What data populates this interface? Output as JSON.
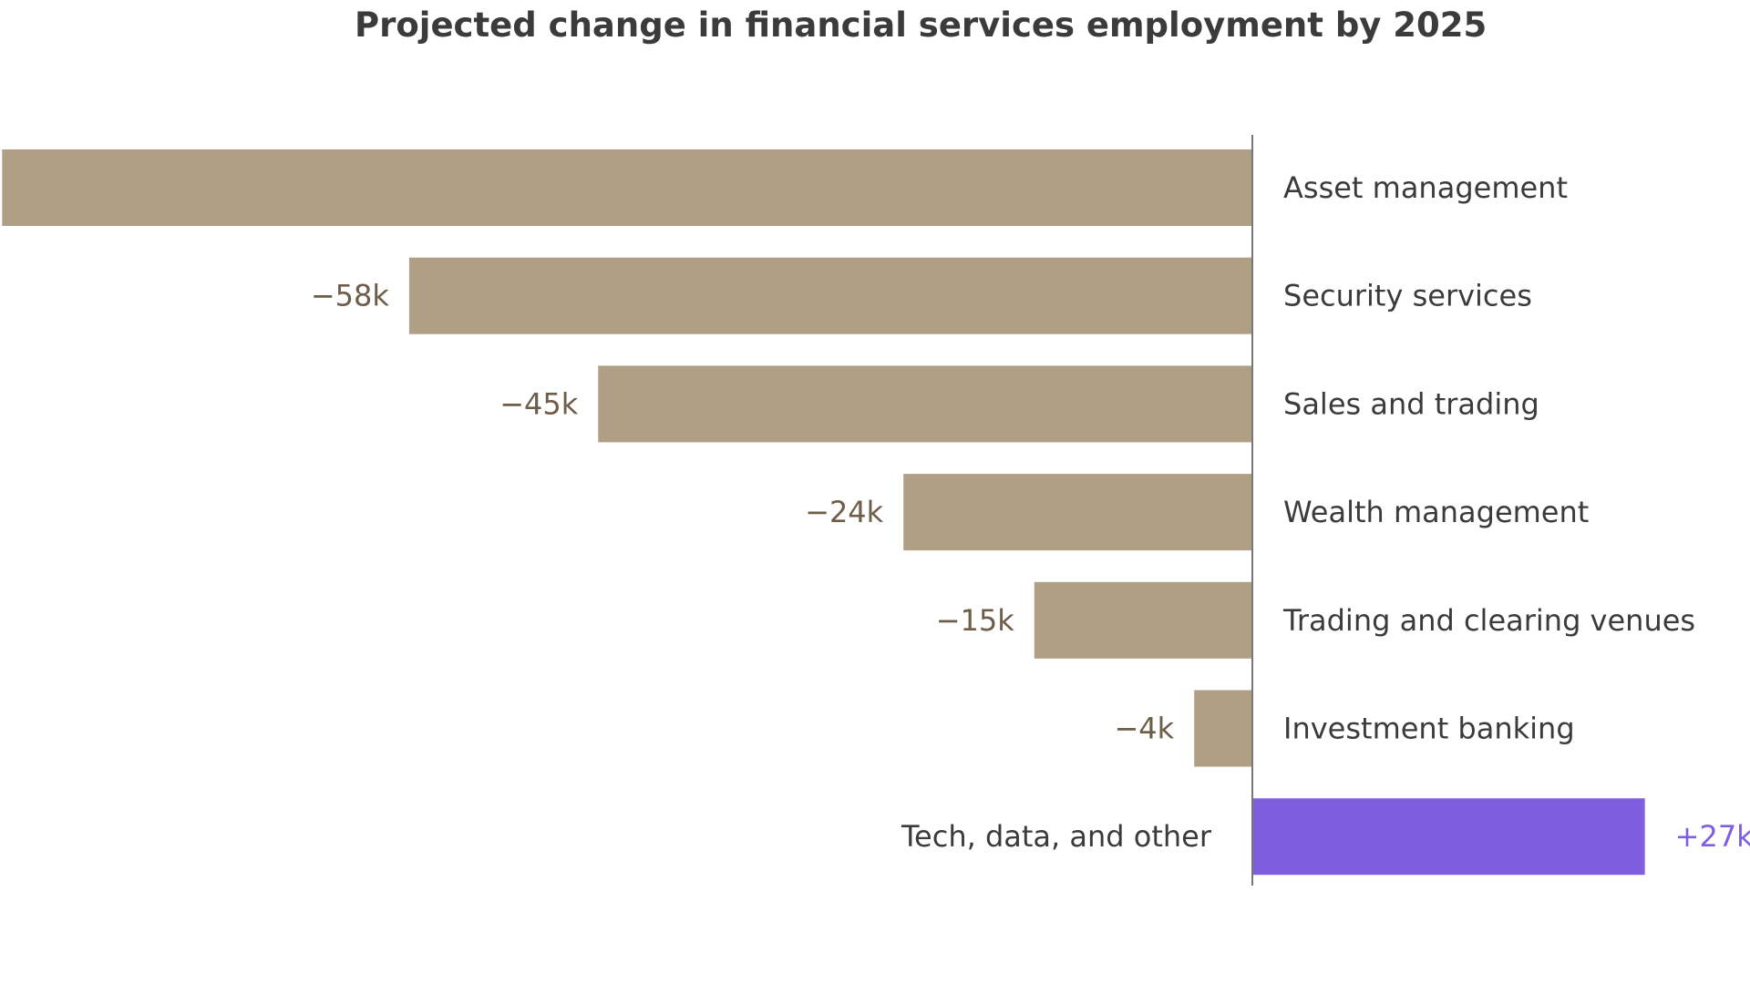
{
  "chart_data": {
    "type": "bar",
    "orientation": "horizontal",
    "title": "Projected change in financial services employment by 2025",
    "xlabel": "",
    "ylabel": "",
    "grid": false,
    "legend": "none",
    "categories": [
      "Asset management",
      "Security services",
      "Sales and trading",
      "Wealth management",
      "Trading and clearing venues",
      "Investment banking",
      "Tech, data, and other"
    ],
    "values": [
      -86,
      -58,
      -45,
      -24,
      -15,
      -4,
      27
    ],
    "value_labels": [
      "",
      "−58k",
      "−45k",
      "−24k",
      "−15k",
      "−4k",
      "+27k"
    ],
    "xlim": [
      -86,
      34
    ],
    "colors": {
      "negative": "#b09e85",
      "positive": "#7f5fe0",
      "negative_label": "#6e5d49",
      "positive_label": "#7f5fe0",
      "axis": "#777777"
    }
  }
}
